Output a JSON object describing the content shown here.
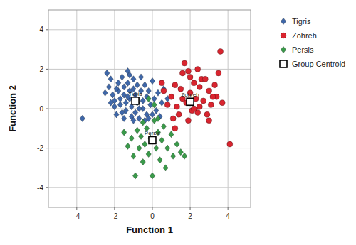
{
  "chart_data": {
    "type": "scatter",
    "x_label": "Function 1",
    "y_label": "Function 2",
    "xlim": [
      -5.5,
      5.2
    ],
    "ylim": [
      -5,
      5
    ],
    "xticks": [
      -4,
      -2,
      0,
      2,
      4
    ],
    "yticks": [
      -4,
      -2,
      0,
      2,
      4
    ],
    "grid": true,
    "legend": "right",
    "series": [
      {
        "name": "Tigris",
        "color": "#3f67a8",
        "marker": "diamond",
        "x": [
          -3.7,
          -2.4,
          -2.2,
          -2.3,
          -2.1,
          -2.0,
          -2.0,
          -1.9,
          -1.8,
          -1.8,
          -1.7,
          -1.7,
          -1.6,
          -1.6,
          -1.5,
          -1.5,
          -1.4,
          -1.4,
          -1.3,
          -1.3,
          -1.2,
          -1.2,
          -1.1,
          -1.1,
          -1.0,
          -1.0,
          -0.9,
          -0.9,
          -0.8,
          -0.8,
          -0.7,
          -0.6,
          -0.6,
          -0.5,
          -0.5,
          -0.4,
          -0.3,
          -0.3,
          -0.2,
          -0.1,
          0.0,
          0.1,
          0.2,
          0.3,
          0.5,
          0.6,
          0.8,
          -2.2,
          -1.9,
          -1.5,
          -1.2,
          -0.7,
          -0.4,
          -1.3,
          -0.2,
          0.4,
          -2.5,
          -1.0,
          0.0
        ],
        "values": [
          -0.5,
          1.8,
          1.5,
          1.1,
          0.7,
          0.4,
          0.1,
          -0.3,
          1.3,
          0.9,
          0.5,
          0.2,
          -0.2,
          1.6,
          1.1,
          0.7,
          0.3,
          -0.1,
          1.9,
          1.3,
          0.9,
          0.5,
          0.1,
          -0.4,
          1.5,
          1.0,
          0.7,
          -0.2,
          1.2,
          0.3,
          -0.5,
          1.6,
          0.9,
          0.4,
          0.0,
          1.2,
          0.6,
          -0.3,
          0.9,
          0.2,
          1.4,
          0.5,
          -0.1,
          0.8,
          0.3,
          1.0,
          0.5,
          0.3,
          1.0,
          -0.5,
          1.7,
          0.0,
          -0.6,
          0.6,
          -0.5,
          -0.4,
          0.8,
          -0.6,
          -0.3
        ]
      },
      {
        "name": "Zohreh",
        "color": "#d9252f",
        "marker": "circle",
        "x": [
          1.0,
          1.2,
          1.3,
          1.4,
          1.5,
          1.6,
          1.7,
          1.8,
          1.9,
          2.0,
          2.1,
          2.2,
          2.3,
          2.4,
          2.5,
          2.6,
          2.7,
          2.8,
          2.9,
          3.0,
          3.1,
          3.3,
          3.4,
          3.5,
          3.6,
          3.7,
          4.1,
          0.8,
          1.1,
          2.0,
          1.6,
          2.5,
          3.0,
          0.6,
          1.9,
          2.4,
          1.2,
          2.2,
          3.2,
          0.5
        ],
        "values": [
          0.6,
          1.2,
          0.1,
          -0.3,
          1.0,
          1.8,
          2.3,
          0.3,
          -0.6,
          0.8,
          -0.1,
          1.3,
          0.5,
          -0.2,
          1.1,
          1.5,
          0.4,
          1.5,
          -0.3,
          0.9,
          0.2,
          1.2,
          0.6,
          1.8,
          2.9,
          0.3,
          -1.8,
          0.2,
          -0.5,
          1.6,
          0.5,
          0.1,
          -0.6,
          0.9,
          1.9,
          2.0,
          -1.0,
          0.0,
          0.6,
          1.3
        ]
      },
      {
        "name": "Persis",
        "color": "#3a9a4a",
        "marker": "diamond",
        "x": [
          -1.5,
          -1.3,
          -1.1,
          -1.0,
          -0.9,
          -0.8,
          -0.7,
          -0.6,
          -0.5,
          -0.4,
          -0.3,
          -0.2,
          -0.1,
          0.0,
          0.1,
          0.2,
          0.3,
          0.4,
          0.5,
          0.6,
          0.7,
          0.8,
          1.0,
          1.1,
          1.3,
          1.5,
          1.7,
          -0.2,
          0.1,
          0.3,
          -0.5
        ],
        "values": [
          -1.2,
          -1.9,
          -1.5,
          -2.4,
          -3.4,
          -1.1,
          -2.0,
          -1.4,
          -2.7,
          -1.8,
          -1.0,
          -2.3,
          -1.5,
          -3.4,
          -0.6,
          -2.0,
          -1.2,
          -2.6,
          -1.6,
          -0.9,
          -3.0,
          -2.0,
          -1.3,
          -2.4,
          -1.8,
          -2.2,
          -2.4,
          0.5,
          0.2,
          -0.5,
          -0.7
        ]
      },
      {
        "name": "Group Centroid",
        "color": "#000000",
        "marker": "square-open",
        "x": [
          -0.9,
          2.0,
          0.0
        ],
        "values": [
          0.4,
          0.35,
          -1.6
        ],
        "labels": [
          "Tigris",
          "Zohreh",
          "Persis"
        ]
      }
    ]
  }
}
